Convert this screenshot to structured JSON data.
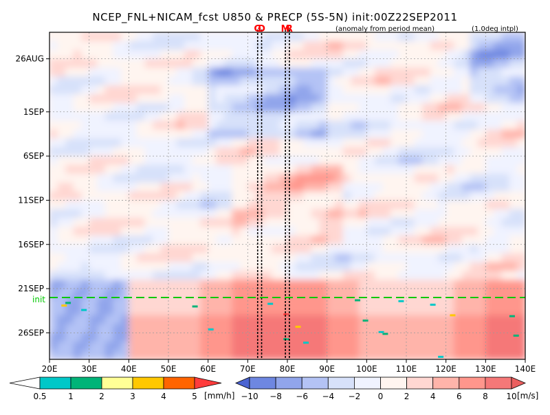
{
  "title": "NCEP_FNL+NICAM_fcst U850 & PRECP (5S-5N) init:00Z22SEP2011",
  "subtitle_left": "(anomaly from period mean)",
  "subtitle_right": "(1.0deg intpl)",
  "chart_data": {
    "type": "heatmap",
    "x_axis": {
      "label": "",
      "range": [
        "20E",
        "140E"
      ],
      "ticks": [
        "20E",
        "30E",
        "40E",
        "50E",
        "60E",
        "70E",
        "80E",
        "90E",
        "100E",
        "110E",
        "120E",
        "130E",
        "140E"
      ]
    },
    "y_axis": {
      "label": "",
      "range": [
        "23AUG2011",
        "29SEP2011"
      ],
      "ticks": [
        "26AUG",
        "1SEP",
        "6SEP",
        "11SEP",
        "16SEP",
        "21SEP",
        "26SEP"
      ]
    },
    "grid": true,
    "init_marker": {
      "label": "init",
      "date": "22SEP",
      "color": "#00c800"
    },
    "markers": [
      {
        "label": "G",
        "lon": 72.5
      },
      {
        "label": "D",
        "lon": 73.5
      },
      {
        "label": "M",
        "lon": 79.5
      },
      {
        "label": "R",
        "lon": 80.5
      }
    ],
    "marker_color": "#ff0000",
    "precip_legend": {
      "unit": "[mm/h]",
      "ticks": [
        "0.5",
        "1",
        "2",
        "3",
        "4",
        "5"
      ],
      "colors": [
        "#ffffff",
        "#00c8c8",
        "#00b478",
        "#ffff96",
        "#ffc800",
        "#ff6400",
        "#ff3c3c"
      ]
    },
    "wind_legend": {
      "unit": "[m/s]",
      "ticks": [
        "−10",
        "−8",
        "−6",
        "−4",
        "−2",
        "0",
        "2",
        "4",
        "6",
        "8",
        "10"
      ],
      "colors": [
        "#4b64d2",
        "#6e87e1",
        "#91a5eb",
        "#b4c3f5",
        "#d7e1fa",
        "#f0f3ff",
        "#fff5f0",
        "#ffd7d2",
        "#ffb4aa",
        "#ff968c",
        "#f57878",
        "#eb5f5f"
      ]
    }
  }
}
